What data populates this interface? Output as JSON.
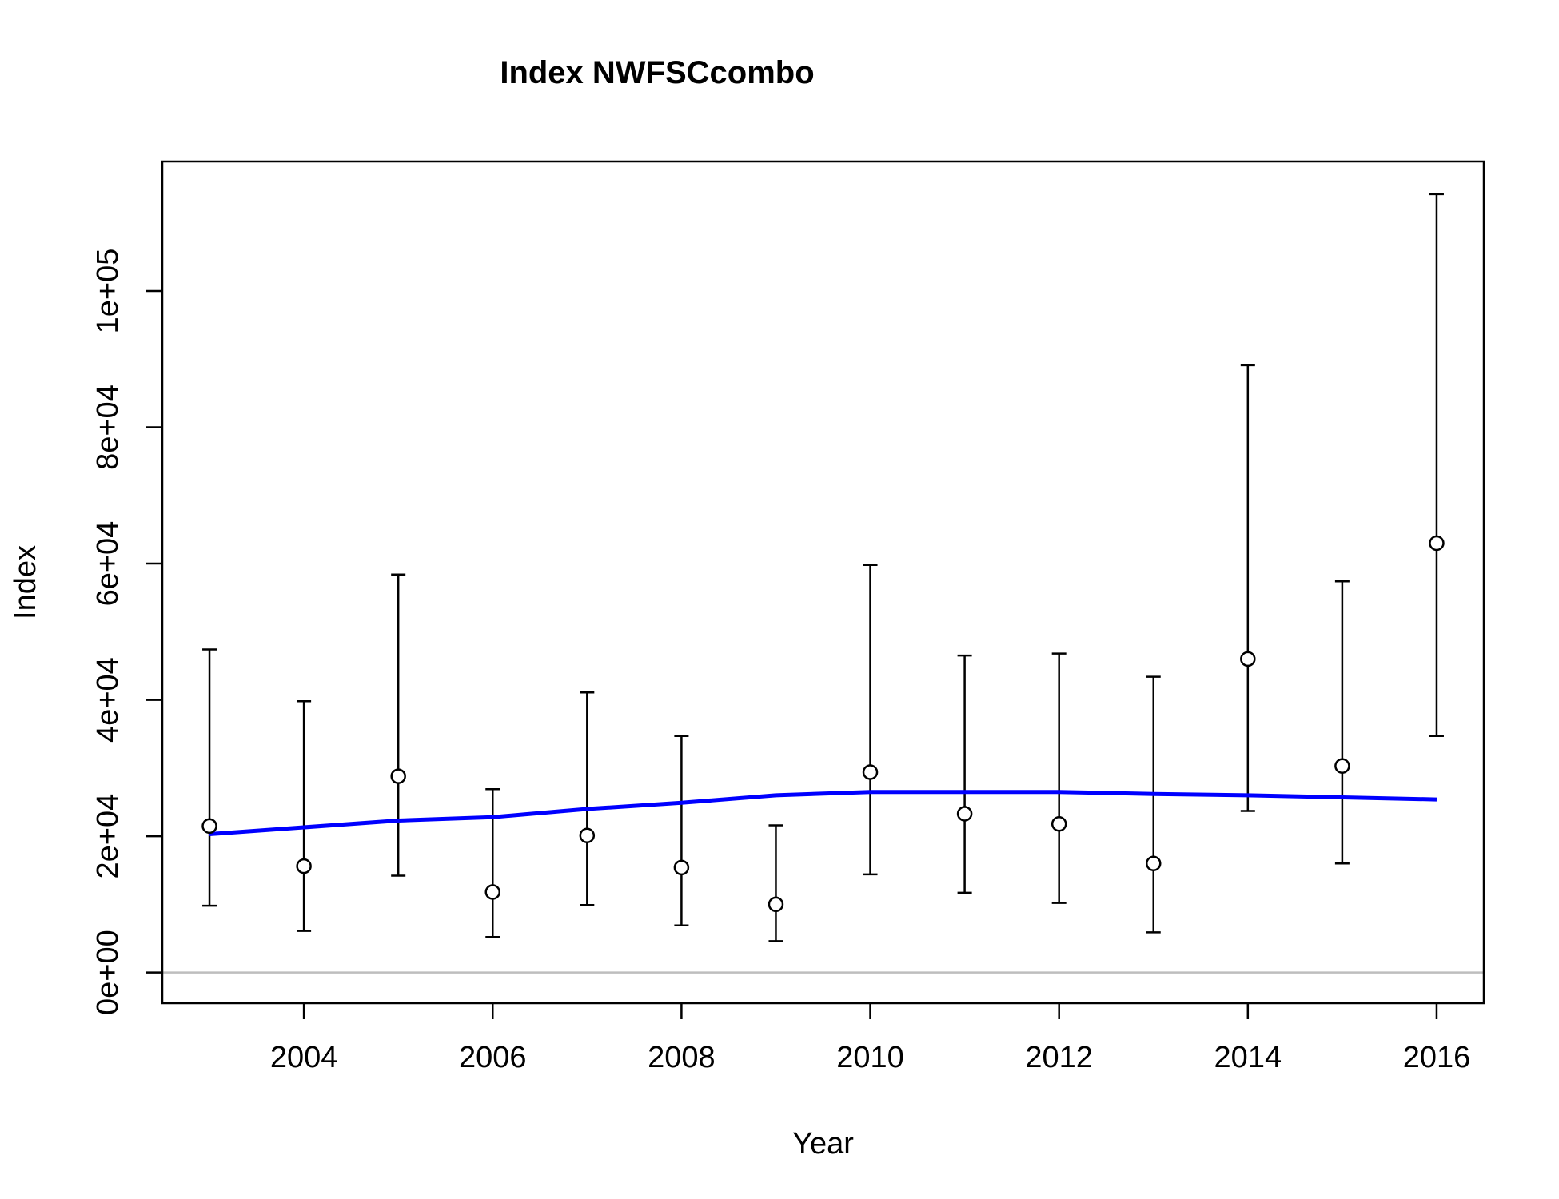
{
  "chart_data": {
    "type": "scatter",
    "title": "Index NWFSCcombo",
    "xlabel": "Year",
    "ylabel": "Index",
    "xlim": [
      2002.5,
      2016.5
    ],
    "ylim": [
      -4500,
      119000
    ],
    "x_ticks": [
      2004,
      2006,
      2008,
      2010,
      2012,
      2014,
      2016
    ],
    "x_tick_labels": [
      "2004",
      "2006",
      "2008",
      "2010",
      "2012",
      "2014",
      "2016"
    ],
    "y_ticks": [
      0,
      20000,
      40000,
      60000,
      80000,
      100000
    ],
    "y_tick_labels": [
      "0e+00",
      "2e+04",
      "4e+04",
      "6e+04",
      "8e+04",
      "1e+05"
    ],
    "reference_line": {
      "y": 0,
      "color": "#bebebe"
    },
    "observed": {
      "marker": "open-circle",
      "color": "#000000",
      "points": [
        {
          "x": 2003,
          "y": 21500,
          "lower": 9800,
          "upper": 47400
        },
        {
          "x": 2004,
          "y": 15600,
          "lower": 6100,
          "upper": 39800
        },
        {
          "x": 2005,
          "y": 28800,
          "lower": 14200,
          "upper": 58400
        },
        {
          "x": 2006,
          "y": 11800,
          "lower": 5200,
          "upper": 26900
        },
        {
          "x": 2007,
          "y": 20100,
          "lower": 9900,
          "upper": 41100
        },
        {
          "x": 2008,
          "y": 15400,
          "lower": 6900,
          "upper": 34700
        },
        {
          "x": 2009,
          "y": 10000,
          "lower": 4600,
          "upper": 21600
        },
        {
          "x": 2010,
          "y": 29400,
          "lower": 14400,
          "upper": 59800
        },
        {
          "x": 2011,
          "y": 23300,
          "lower": 11700,
          "upper": 46500
        },
        {
          "x": 2012,
          "y": 21800,
          "lower": 10200,
          "upper": 46800
        },
        {
          "x": 2013,
          "y": 16000,
          "lower": 5900,
          "upper": 43400
        },
        {
          "x": 2014,
          "y": 46000,
          "lower": 23700,
          "upper": 89100
        },
        {
          "x": 2015,
          "y": 30300,
          "lower": 16000,
          "upper": 57400
        },
        {
          "x": 2016,
          "y": 63000,
          "lower": 34700,
          "upper": 114200
        }
      ]
    },
    "fitted": {
      "type": "line",
      "color": "#0000ff",
      "x": [
        2003,
        2004,
        2005,
        2006,
        2007,
        2008,
        2009,
        2010,
        2011,
        2012,
        2013,
        2014,
        2015,
        2016
      ],
      "y": [
        20300,
        21300,
        22300,
        22800,
        24000,
        24900,
        26000,
        26500,
        26500,
        26500,
        26200,
        26000,
        25700,
        25400
      ]
    }
  }
}
